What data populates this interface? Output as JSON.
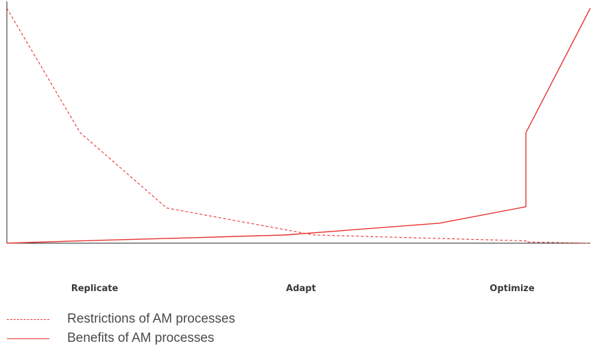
{
  "chart_data": {
    "type": "line",
    "categories": [
      "Replicate",
      "Adapt",
      "Optimize"
    ],
    "x": [
      0,
      1,
      2,
      3,
      4,
      5,
      6,
      7
    ],
    "ylim": [
      0,
      100
    ],
    "series": [
      {
        "name": "Restrictions of AM processes",
        "style": "dashed",
        "color": "#e5312f",
        "values": [
          100,
          47,
          15,
          3.5,
          2,
          1,
          0.5,
          0
        ]
      },
      {
        "name": "Benefits of AM processes",
        "style": "solid",
        "color": "#e5312f",
        "values": [
          0,
          1,
          2,
          3.5,
          8.5,
          15.5,
          47,
          100
        ]
      }
    ],
    "grid": false,
    "legend_position": "bottom-left"
  }
}
